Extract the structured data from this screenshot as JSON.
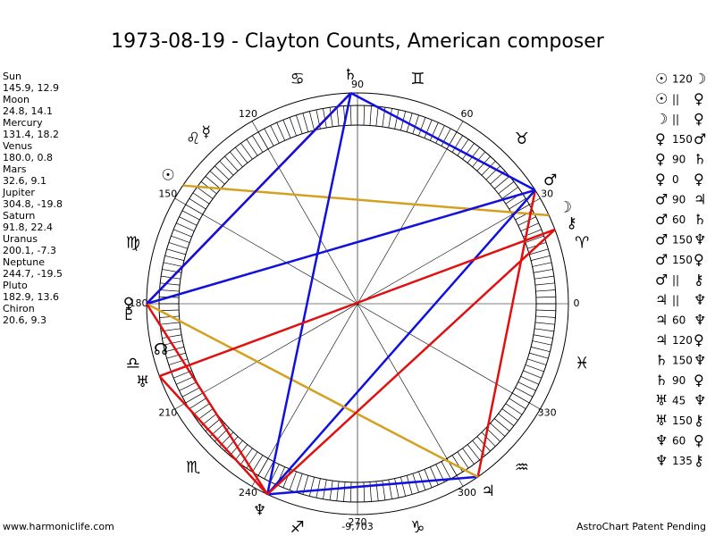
{
  "title": "1973-08-19 - Clayton Counts, American composer",
  "planets": [
    {
      "name": "Sun",
      "position": "145.9, 12.9",
      "glyph": "☉"
    },
    {
      "name": "Moon",
      "position": "24.8, 14.1",
      "glyph": "☽"
    },
    {
      "name": "Mercury",
      "position": "131.4, 18.2",
      "glyph": "☿"
    },
    {
      "name": "Venus",
      "position": "180.0, 0.8",
      "glyph": "♀"
    },
    {
      "name": "Mars",
      "position": "32.6, 9.1",
      "glyph": "♂"
    },
    {
      "name": "Jupiter",
      "position": "304.8, -19.8",
      "glyph": "♃"
    },
    {
      "name": "Saturn",
      "position": "91.8, 22.4",
      "glyph": "♄"
    },
    {
      "name": "Uranus",
      "position": "200.1, -7.3",
      "glyph": "♅"
    },
    {
      "name": "Neptune",
      "position": "244.7, -19.5",
      "glyph": "♆"
    },
    {
      "name": "Pluto",
      "position": "182.9, 13.6",
      "glyph": "♇"
    },
    {
      "name": "Chiron",
      "position": "20.6, 9.3",
      "glyph": "⚷"
    }
  ],
  "aspects": [
    {
      "p1": "☉",
      "aspect": "120",
      "p2": "☽",
      "color": "#d4a020",
      "style": "solid"
    },
    {
      "p1": "☉",
      "aspect": "||",
      "p2": "♀"
    },
    {
      "p1": "☽",
      "aspect": "||",
      "p2": "♀"
    },
    {
      "p1": "♀",
      "aspect": "150",
      "p2": "♂",
      "color": "#d4a020",
      "style": "dotted"
    },
    {
      "p1": "♀",
      "aspect": "90",
      "p2": "♄",
      "color": "#e01010",
      "style": "solid"
    },
    {
      "p1": "♀",
      "aspect": "0",
      "p2": "♀"
    },
    {
      "p1": "♂",
      "aspect": "90",
      "p2": "♃",
      "color": "#e01010",
      "style": "solid"
    },
    {
      "p1": "♂",
      "aspect": "60",
      "p2": "♄",
      "color": "#1010e0",
      "style": "solid"
    },
    {
      "p1": "♂",
      "aspect": "150",
      "p2": "♆",
      "color": "#1010e0",
      "style": "solid"
    },
    {
      "p1": "♂",
      "aspect": "150",
      "p2": "♀",
      "color": "#1010e0",
      "style": "solid"
    },
    {
      "p1": "♂",
      "aspect": "||",
      "p2": "⚷"
    },
    {
      "p1": "♃",
      "aspect": "||",
      "p2": "♆"
    },
    {
      "p1": "♃",
      "aspect": "60",
      "p2": "♆",
      "color": "#1010e0",
      "style": "solid"
    },
    {
      "p1": "♃",
      "aspect": "120",
      "p2": "♀",
      "color": "#d4a020",
      "style": "solid"
    },
    {
      "p1": "♄",
      "aspect": "150",
      "p2": "♆",
      "color": "#1010e0",
      "style": "solid"
    },
    {
      "p1": "♄",
      "aspect": "90",
      "p2": "♀",
      "color": "#1010e0",
      "style": "solid"
    },
    {
      "p1": "♅",
      "aspect": "45",
      "p2": "♆",
      "color": "#e01010",
      "style": "solid"
    },
    {
      "p1": "♅",
      "aspect": "150",
      "p2": "⚷",
      "color": "#e01010",
      "style": "solid"
    },
    {
      "p1": "♆",
      "aspect": "60",
      "p2": "♀",
      "color": "#e01010",
      "style": "solid"
    },
    {
      "p1": "♆",
      "aspect": "135",
      "p2": "⚷",
      "color": "#e01010",
      "style": "solid"
    }
  ],
  "zodiac": [
    "♈",
    "♉",
    "♊",
    "♋",
    "♌",
    "♍",
    "♎",
    "♏",
    "♐",
    "♑",
    "♒",
    "♓"
  ],
  "degree_labels": [
    "0",
    "30",
    "60",
    "90",
    "120",
    "150",
    "180",
    "210",
    "240",
    "270",
    "300",
    "330"
  ],
  "node": "☊",
  "bottom_value": "-9,703",
  "footer": {
    "left": "www.harmoniclife.com",
    "right": "AstroChart Patent Pending"
  }
}
